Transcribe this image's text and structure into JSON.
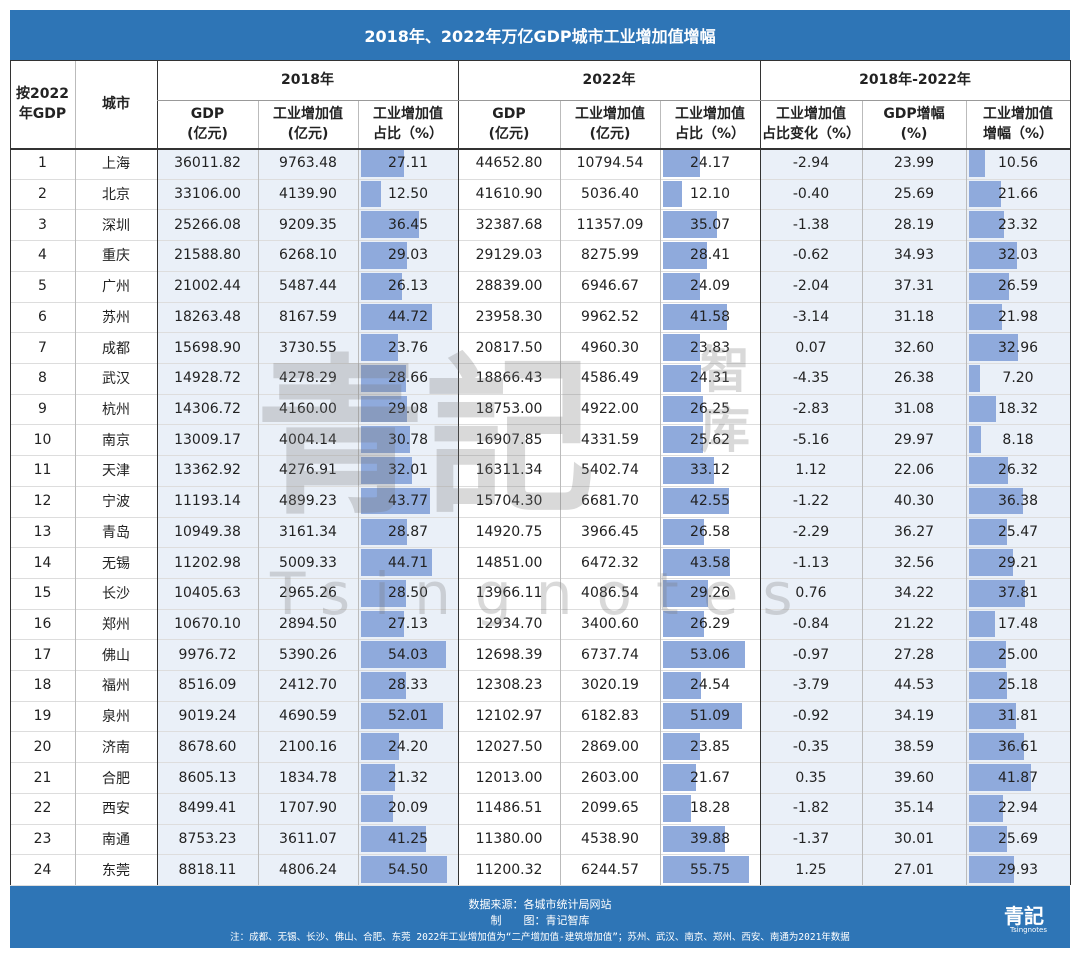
{
  "header": {
    "title": "2018年、2022年万亿GDP城市工业增加值增幅"
  },
  "table": {
    "groups": [
      "2018年",
      "2022年",
      "2018年-2022年"
    ],
    "columns": [
      "按2022\n年GDP",
      "城市",
      "GDP\n(亿元)",
      "工业增加值\n(亿元)",
      "工业增加值\n占比（%）",
      "GDP\n(亿元)",
      "工业增加值\n(亿元)",
      "工业增加值\n占比（%）",
      "工业增加值\n占比变化（%）",
      "GDP增幅\n(%)",
      "工业增加值\n增幅（%）"
    ],
    "rows": [
      [
        "1",
        "上海",
        "36011.82",
        "9763.48",
        "27.11",
        "44652.80",
        "10794.54",
        "24.17",
        "-2.94",
        "23.99",
        "10.56"
      ],
      [
        "2",
        "北京",
        "33106.00",
        "4139.90",
        "12.50",
        "41610.90",
        "5036.40",
        "12.10",
        "-0.40",
        "25.69",
        "21.66"
      ],
      [
        "3",
        "深圳",
        "25266.08",
        "9209.35",
        "36.45",
        "32387.68",
        "11357.09",
        "35.07",
        "-1.38",
        "28.19",
        "23.32"
      ],
      [
        "4",
        "重庆",
        "21588.80",
        "6268.10",
        "29.03",
        "29129.03",
        "8275.99",
        "28.41",
        "-0.62",
        "34.93",
        "32.03"
      ],
      [
        "5",
        "广州",
        "21002.44",
        "5487.44",
        "26.13",
        "28839.00",
        "6946.67",
        "24.09",
        "-2.04",
        "37.31",
        "26.59"
      ],
      [
        "6",
        "苏州",
        "18263.48",
        "8167.59",
        "44.72",
        "23958.30",
        "9962.52",
        "41.58",
        "-3.14",
        "31.18",
        "21.98"
      ],
      [
        "7",
        "成都",
        "15698.90",
        "3730.55",
        "23.76",
        "20817.50",
        "4960.30",
        "23.83",
        "0.07",
        "32.60",
        "32.96"
      ],
      [
        "8",
        "武汉",
        "14928.72",
        "4278.29",
        "28.66",
        "18866.43",
        "4586.49",
        "24.31",
        "-4.35",
        "26.38",
        "7.20"
      ],
      [
        "9",
        "杭州",
        "14306.72",
        "4160.00",
        "29.08",
        "18753.00",
        "4922.00",
        "26.25",
        "-2.83",
        "31.08",
        "18.32"
      ],
      [
        "10",
        "南京",
        "13009.17",
        "4004.14",
        "30.78",
        "16907.85",
        "4331.59",
        "25.62",
        "-5.16",
        "29.97",
        "8.18"
      ],
      [
        "11",
        "天津",
        "13362.92",
        "4276.91",
        "32.01",
        "16311.34",
        "5402.74",
        "33.12",
        "1.12",
        "22.06",
        "26.32"
      ],
      [
        "12",
        "宁波",
        "11193.14",
        "4899.23",
        "43.77",
        "15704.30",
        "6681.70",
        "42.55",
        "-1.22",
        "40.30",
        "36.38"
      ],
      [
        "13",
        "青岛",
        "10949.38",
        "3161.34",
        "28.87",
        "14920.75",
        "3966.45",
        "26.58",
        "-2.29",
        "36.27",
        "25.47"
      ],
      [
        "14",
        "无锡",
        "11202.98",
        "5009.33",
        "44.71",
        "14851.00",
        "6472.32",
        "43.58",
        "-1.13",
        "32.56",
        "29.21"
      ],
      [
        "15",
        "长沙",
        "10405.63",
        "2965.26",
        "28.50",
        "13966.11",
        "4086.54",
        "29.26",
        "0.76",
        "34.22",
        "37.81"
      ],
      [
        "16",
        "郑州",
        "10670.10",
        "2894.50",
        "27.13",
        "12934.70",
        "3400.60",
        "26.29",
        "-0.84",
        "21.22",
        "17.48"
      ],
      [
        "17",
        "佛山",
        "9976.72",
        "5390.26",
        "54.03",
        "12698.39",
        "6737.74",
        "53.06",
        "-0.97",
        "27.28",
        "25.00"
      ],
      [
        "18",
        "福州",
        "8516.09",
        "2412.70",
        "28.33",
        "12308.23",
        "3020.19",
        "24.54",
        "-3.79",
        "44.53",
        "25.18"
      ],
      [
        "19",
        "泉州",
        "9019.24",
        "4690.59",
        "52.01",
        "12102.97",
        "6182.83",
        "51.09",
        "-0.92",
        "34.19",
        "31.81"
      ],
      [
        "20",
        "济南",
        "8678.60",
        "2100.16",
        "24.20",
        "12027.50",
        "2869.00",
        "23.85",
        "-0.35",
        "38.59",
        "36.61"
      ],
      [
        "21",
        "合肥",
        "8605.13",
        "1834.78",
        "21.32",
        "12013.00",
        "2603.00",
        "21.67",
        "0.35",
        "39.60",
        "41.87"
      ],
      [
        "22",
        "西安",
        "8499.41",
        "1707.90",
        "20.09",
        "11486.51",
        "2099.65",
        "18.28",
        "-1.82",
        "35.14",
        "22.94"
      ],
      [
        "23",
        "南通",
        "8753.23",
        "3611.07",
        "41.25",
        "11380.00",
        "4538.90",
        "39.88",
        "-1.37",
        "30.01",
        "25.69"
      ],
      [
        "24",
        "东莞",
        "8818.11",
        "4806.24",
        "54.50",
        "11200.32",
        "6244.57",
        "55.75",
        "1.25",
        "27.01",
        "29.93"
      ]
    ]
  },
  "watermark": {
    "main": "青記",
    "side": "智库",
    "latin": "Tsingnotes"
  },
  "footer": {
    "source": "数据来源：各城市统计局网站",
    "maker": "制　　图：青记智库",
    "note": "注：成都、无锡、长沙、佛山、合肥、东莞 2022年工业增加值为“二产增加值-建筑增加值”；苏州、武汉、南京、郑州、西安、南通为2021年数据",
    "logo": "青記",
    "logo_sub": "Tsingnotes"
  }
}
